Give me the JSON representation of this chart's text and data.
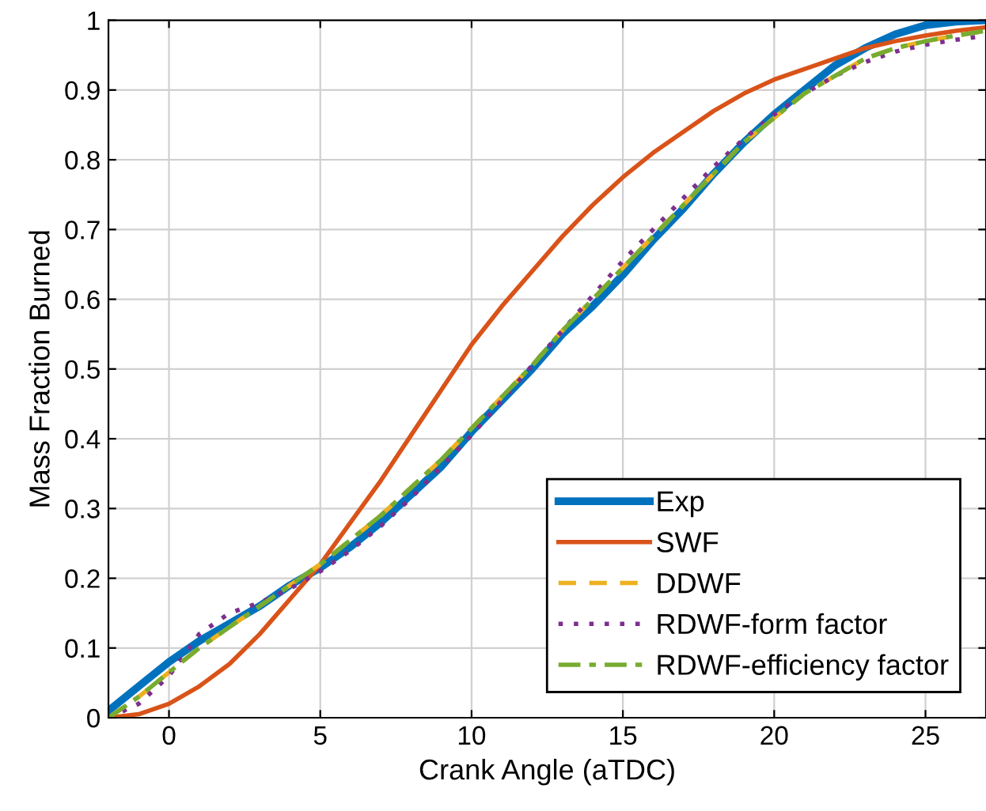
{
  "chart_data": {
    "type": "line",
    "xlabel": "Crank Angle (aTDC)",
    "ylabel": "Mass Fraction Burned",
    "x": [
      -2,
      -1,
      0,
      1,
      2,
      3,
      4,
      5,
      6,
      7,
      8,
      9,
      10,
      11,
      12,
      13,
      14,
      15,
      16,
      17,
      18,
      19,
      20,
      21,
      22,
      23,
      24,
      25,
      26,
      27
    ],
    "xlim": [
      -2,
      27
    ],
    "ylim": [
      0,
      1
    ],
    "xticks": [
      0,
      5,
      10,
      15,
      20,
      25
    ],
    "yticks": [
      0,
      0.1,
      0.2,
      0.3,
      0.4,
      0.5,
      0.6,
      0.7,
      0.8,
      0.9,
      1
    ],
    "grid": true,
    "legend": "bottom right",
    "series": [
      {
        "name": "Exp",
        "color": "#0072bd",
        "line_style": "solid",
        "values": [
          0.01,
          0.045,
          0.08,
          0.11,
          0.135,
          0.16,
          0.19,
          0.215,
          0.245,
          0.28,
          0.32,
          0.36,
          0.41,
          0.455,
          0.5,
          0.55,
          0.59,
          0.635,
          0.685,
          0.73,
          0.78,
          0.825,
          0.865,
          0.9,
          0.935,
          0.96,
          0.98,
          0.993,
          0.998,
          1.0
        ]
      },
      {
        "name": "SWF",
        "color": "#d95319",
        "line_style": "solid",
        "values": [
          0,
          0.005,
          0.02,
          0.045,
          0.077,
          0.12,
          0.17,
          0.22,
          0.28,
          0.34,
          0.405,
          0.47,
          0.535,
          0.59,
          0.64,
          0.69,
          0.735,
          0.775,
          0.81,
          0.84,
          0.87,
          0.895,
          0.915,
          0.93,
          0.945,
          0.96,
          0.97,
          0.978,
          0.985,
          0.99
        ]
      },
      {
        "name": "DDWF",
        "color": "#edb120",
        "line_style": "dashed",
        "values": [
          0.0,
          0.03,
          0.065,
          0.1,
          0.13,
          0.16,
          0.19,
          0.22,
          0.255,
          0.29,
          0.33,
          0.37,
          0.415,
          0.46,
          0.505,
          0.555,
          0.6,
          0.645,
          0.69,
          0.735,
          0.78,
          0.825,
          0.86,
          0.895,
          0.92,
          0.945,
          0.96,
          0.97,
          0.978,
          0.985
        ]
      },
      {
        "name": "RDWF-form factor",
        "color": "#7e2f8e",
        "line_style": "dotted",
        "values": [
          0,
          0.02,
          0.06,
          0.12,
          0.15,
          0.165,
          0.185,
          0.21,
          0.24,
          0.275,
          0.315,
          0.36,
          0.405,
          0.455,
          0.505,
          0.555,
          0.605,
          0.655,
          0.7,
          0.745,
          0.79,
          0.83,
          0.865,
          0.895,
          0.92,
          0.94,
          0.955,
          0.965,
          0.972,
          0.978
        ]
      },
      {
        "name": "RDWF-efficiency factor",
        "color": "#77ac30",
        "line_style": "dashdot",
        "values": [
          0.0,
          0.03,
          0.065,
          0.1,
          0.13,
          0.16,
          0.19,
          0.22,
          0.255,
          0.29,
          0.33,
          0.37,
          0.415,
          0.46,
          0.505,
          0.555,
          0.6,
          0.645,
          0.69,
          0.735,
          0.78,
          0.825,
          0.86,
          0.895,
          0.92,
          0.945,
          0.96,
          0.97,
          0.978,
          0.985
        ]
      }
    ]
  }
}
